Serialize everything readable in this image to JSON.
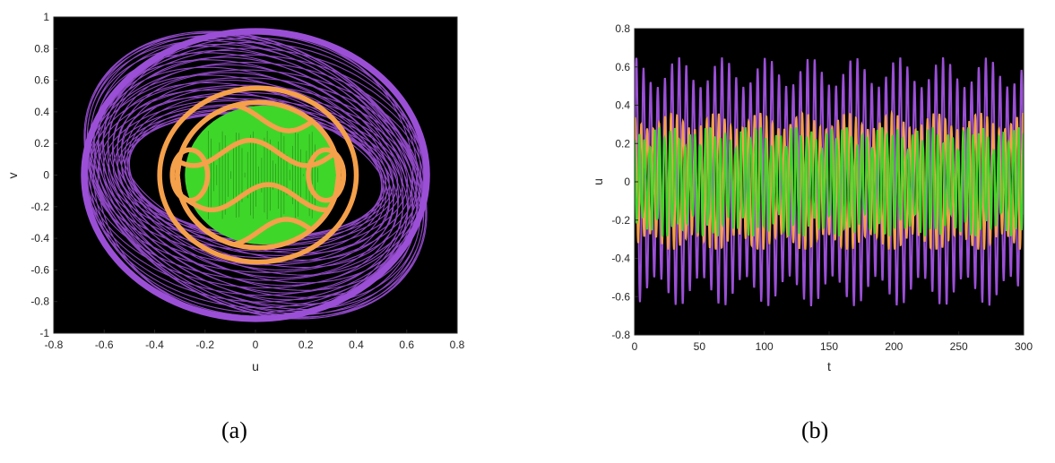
{
  "chart_data": [
    {
      "type": "line",
      "title": "",
      "caption": "(a)",
      "xlabel": "u",
      "ylabel": "v",
      "xlim": [
        -0.8,
        0.8
      ],
      "ylim": [
        -1,
        1
      ],
      "xticks": [
        "-0.8",
        "-0.6",
        "-0.4",
        "-0.2",
        "0",
        "0.2",
        "0.4",
        "0.6",
        "0.8"
      ],
      "yticks": [
        "-1",
        "-0.8",
        "-0.6",
        "-0.4",
        "-0.2",
        "0",
        "0.2",
        "0.4",
        "0.6",
        "0.8",
        "1"
      ],
      "background": "#000000",
      "grid": false,
      "series": [
        {
          "color": "#9b4fd6",
          "shape": "ring",
          "u_extent": [
            -0.68,
            0.68
          ],
          "v_extent": [
            -0.91,
            0.91
          ],
          "inner_hole_u": [
            -0.48,
            0.48
          ],
          "inner_hole_v": [
            -0.33,
            0.33
          ]
        },
        {
          "color": "#f5a04a",
          "shape": "ring",
          "u_extent": [
            -0.38,
            0.4
          ],
          "v_extent": [
            -0.55,
            0.55
          ],
          "inner_u": [
            -0.32,
            0.32
          ],
          "inner_v": [
            -0.46,
            0.46
          ]
        },
        {
          "color": "#3fd62a",
          "shape": "disk",
          "u_extent": [
            -0.28,
            0.34
          ],
          "v_extent": [
            -0.44,
            0.44
          ]
        }
      ]
    },
    {
      "type": "line",
      "title": "",
      "caption": "(b)",
      "xlabel": "t",
      "ylabel": "u",
      "xlim": [
        0,
        300
      ],
      "ylim": [
        -0.8,
        0.8
      ],
      "xticks": [
        "0",
        "50",
        "100",
        "150",
        "200",
        "250",
        "300"
      ],
      "yticks": [
        "-0.8",
        "-0.6",
        "-0.4",
        "-0.2",
        "0",
        "0.2",
        "0.4",
        "0.6",
        "0.8"
      ],
      "background": "#000000",
      "grid": false,
      "series": [
        {
          "color": "#9b4fd6",
          "amplitude": 0.65,
          "period": 5.5,
          "range": [
            -0.66,
            0.66
          ]
        },
        {
          "color": "#f5a04a",
          "amplitude": 0.36,
          "period": 4.6,
          "range": [
            -0.35,
            0.37
          ]
        },
        {
          "color": "#3fd62a",
          "amplitude": 0.26,
          "period": 3.9,
          "range": [
            -0.28,
            0.28
          ]
        }
      ]
    }
  ]
}
